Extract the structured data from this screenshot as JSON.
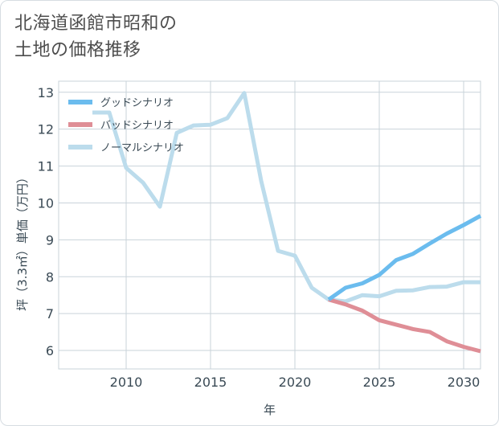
{
  "title": "北海道函館市昭和の\n土地の価格推移",
  "chart_data": {
    "type": "line",
    "xlabel": "年",
    "ylabel": "坪（3.3㎡）単価（万円）",
    "xlim": [
      2006,
      2031
    ],
    "ylim": [
      5.5,
      13.3
    ],
    "xticks": [
      2010,
      2015,
      2020,
      2025,
      2030
    ],
    "yticks": [
      6,
      7,
      8,
      9,
      10,
      11,
      12,
      13
    ],
    "grid": true,
    "legend_position": "top-left",
    "series": [
      {
        "name": "グッドシナリオ",
        "color": "#6bbcee",
        "points": [
          [
            2022,
            7.38
          ],
          [
            2023,
            7.7
          ],
          [
            2024,
            7.82
          ],
          [
            2025,
            8.05
          ],
          [
            2026,
            8.45
          ],
          [
            2027,
            8.62
          ],
          [
            2028,
            8.9
          ],
          [
            2029,
            9.17
          ],
          [
            2030,
            9.4
          ],
          [
            2031,
            9.65
          ]
        ]
      },
      {
        "name": "バッドシナリオ",
        "color": "#df8e96",
        "points": [
          [
            2022,
            7.38
          ],
          [
            2023,
            7.25
          ],
          [
            2024,
            7.08
          ],
          [
            2025,
            6.82
          ],
          [
            2026,
            6.7
          ],
          [
            2027,
            6.58
          ],
          [
            2028,
            6.5
          ],
          [
            2029,
            6.25
          ],
          [
            2030,
            6.1
          ],
          [
            2031,
            5.98
          ]
        ]
      },
      {
        "name": "ノーマルシナリオ",
        "color": "#bcdcec",
        "points": [
          [
            2008,
            12.45
          ],
          [
            2009,
            12.45
          ],
          [
            2010,
            10.95
          ],
          [
            2011,
            10.55
          ],
          [
            2012,
            9.9
          ],
          [
            2013,
            11.9
          ],
          [
            2014,
            12.1
          ],
          [
            2015,
            12.12
          ],
          [
            2016,
            12.3
          ],
          [
            2017,
            12.98
          ],
          [
            2018,
            10.6
          ],
          [
            2019,
            8.7
          ],
          [
            2020,
            8.57
          ],
          [
            2021,
            7.7
          ],
          [
            2022,
            7.38
          ],
          [
            2023,
            7.33
          ],
          [
            2024,
            7.5
          ],
          [
            2025,
            7.47
          ],
          [
            2026,
            7.62
          ],
          [
            2027,
            7.63
          ],
          [
            2028,
            7.72
          ],
          [
            2029,
            7.73
          ],
          [
            2030,
            7.85
          ],
          [
            2031,
            7.85
          ]
        ]
      }
    ]
  }
}
